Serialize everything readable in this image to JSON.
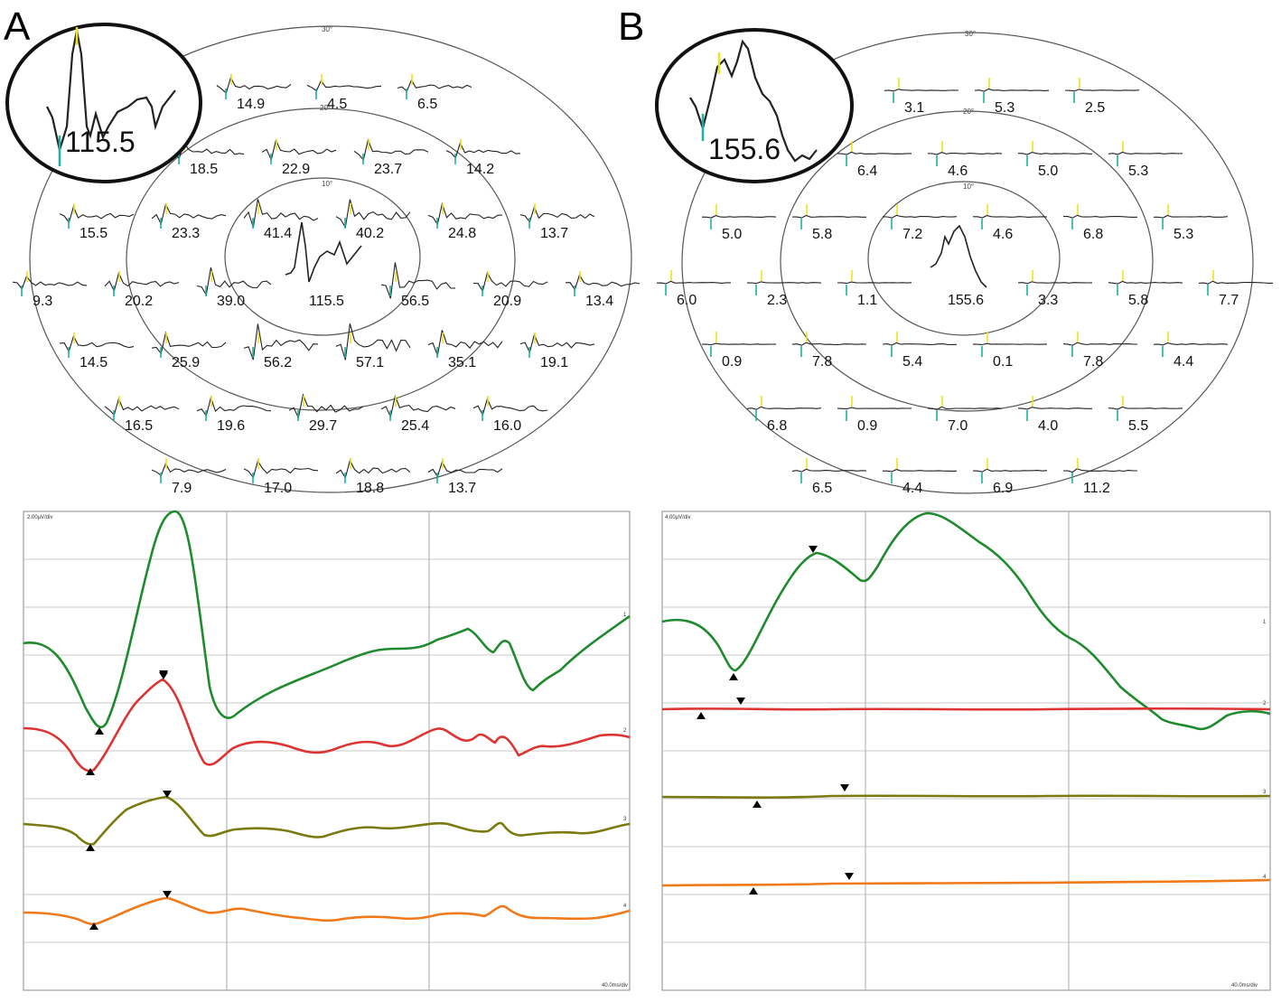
{
  "panel_a": {
    "label": "A",
    "ring_labels": [
      "30°",
      "20°",
      "10°"
    ],
    "rows": [
      [
        "14.9",
        "4.5",
        "6.5"
      ],
      [
        "18.5",
        "22.9",
        "23.7",
        "14.2"
      ],
      [
        "15.5",
        "23.3",
        "41.4",
        "40.2",
        "24.8",
        "13.7"
      ],
      [
        "9.3",
        "20.2",
        "39.0",
        "115.5",
        "56.5",
        "20.9",
        "13.4"
      ],
      [
        "14.5",
        "25.9",
        "56.2",
        "57.1",
        "35.1",
        "19.1"
      ],
      [
        "16.5",
        "19.6",
        "29.7",
        "25.4",
        "16.0"
      ],
      [
        "7.9",
        "17.0",
        "18.8",
        "13.7"
      ]
    ],
    "zoom_value": "115.5",
    "trace_scale": "2.00μV/div",
    "time_scale": "40.0ms/div",
    "trace_numbers": [
      "1",
      "2",
      "3",
      "4"
    ]
  },
  "panel_b": {
    "label": "B",
    "ring_labels": [
      "30°",
      "20°",
      "10°"
    ],
    "rows": [
      [
        "3.1",
        "5.3",
        "2.5"
      ],
      [
        "6.4",
        "4.6",
        "5.0",
        "5.3"
      ],
      [
        "5.0",
        "5.8",
        "7.2",
        "4.6",
        "6.8",
        "5.3"
      ],
      [
        "6.0",
        "2.3",
        "1.1",
        "155.6",
        "3.3",
        "5.8",
        "7.7"
      ],
      [
        "0.9",
        "7.8",
        "5.4",
        "0.1",
        "7.8",
        "4.4"
      ],
      [
        "6.8",
        "0.9",
        "7.0",
        "4.0",
        "5.5"
      ],
      [
        "6.5",
        "4.4",
        "6.9",
        "11.2"
      ]
    ],
    "zoom_value": "155.6",
    "trace_scale": "4.00μV/div",
    "time_scale": "40.0ms/div",
    "trace_numbers": [
      "1",
      "2",
      "3",
      "4"
    ]
  },
  "colors": {
    "ring": "#555555",
    "trace_1": "#1f8a2e",
    "trace_2": "#dd3333",
    "trace_3": "#7a7a10",
    "trace_4": "#f07a1a",
    "marker_n1": "#1bb3a0",
    "marker_p1": "#f2e21a",
    "grid": "#c8c8c8"
  }
}
